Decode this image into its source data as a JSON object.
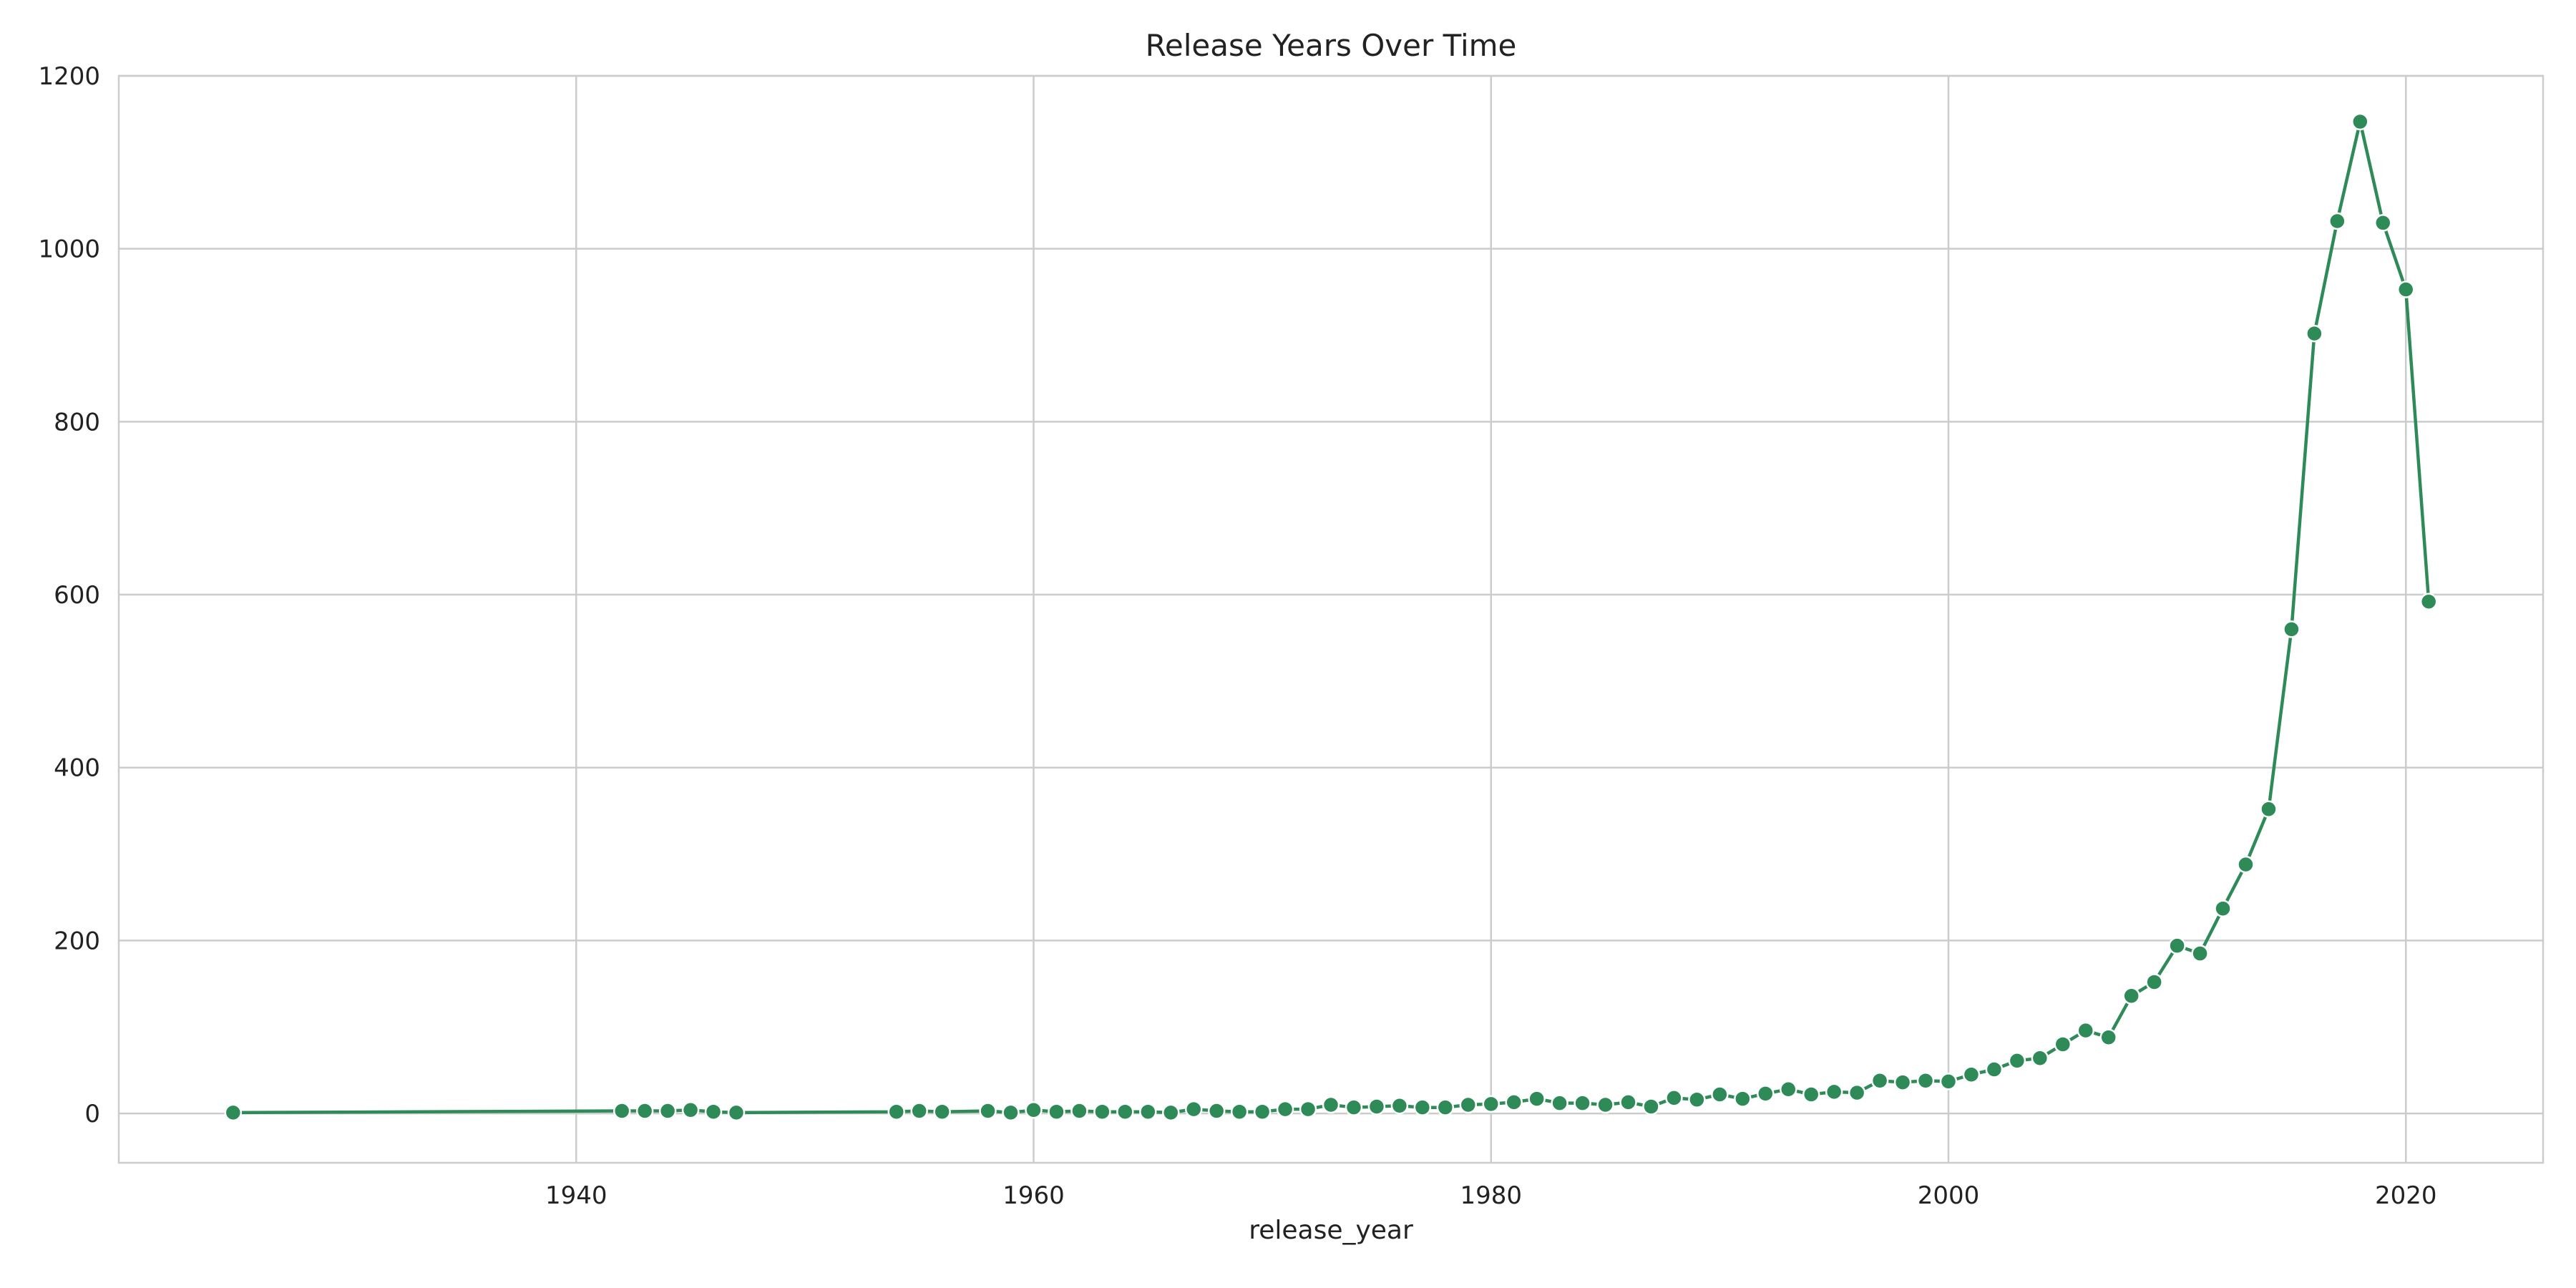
{
  "chart_data": {
    "type": "line",
    "title": "Release Years Over Time",
    "xlabel": "release_year",
    "ylabel": "",
    "xlim": [
      1920,
      2026
    ],
    "ylim": [
      -57,
      1200
    ],
    "xticks": [
      1940,
      1960,
      1980,
      2000,
      2020
    ],
    "yticks": [
      0,
      200,
      400,
      600,
      800,
      1000,
      1200
    ],
    "grid": true,
    "line_color": "#2e8b57",
    "series": [
      {
        "x": [
          1925,
          1942,
          1943,
          1944,
          1945,
          1946,
          1947,
          1954,
          1955,
          1956,
          1958,
          1959,
          1960,
          1961,
          1962,
          1963,
          1964,
          1965,
          1966,
          1967,
          1968,
          1969,
          1970,
          1971,
          1972,
          1973,
          1974,
          1975,
          1976,
          1977,
          1978,
          1979,
          1980,
          1981,
          1982,
          1983,
          1984,
          1985,
          1986,
          1987,
          1988,
          1989,
          1990,
          1991,
          1992,
          1993,
          1994,
          1995,
          1996,
          1997,
          1998,
          1999,
          2000,
          2001,
          2002,
          2003,
          2004,
          2005,
          2006,
          2007,
          2008,
          2009,
          2010,
          2011,
          2012,
          2013,
          2014,
          2015,
          2016,
          2017,
          2018,
          2019,
          2020,
          2021
        ],
        "y": [
          1,
          3,
          3,
          3,
          4,
          2,
          1,
          2,
          3,
          2,
          3,
          1,
          4,
          2,
          3,
          2,
          2,
          2,
          1,
          5,
          3,
          2,
          2,
          5,
          5,
          10,
          7,
          8,
          9,
          7,
          7,
          10,
          11,
          13,
          17,
          12,
          12,
          10,
          13,
          8,
          18,
          16,
          22,
          17,
          23,
          28,
          22,
          25,
          24,
          38,
          36,
          38,
          37,
          45,
          51,
          61,
          64,
          80,
          96,
          88,
          136,
          152,
          194,
          185,
          237,
          288,
          352,
          560,
          902,
          1032,
          1147,
          1030,
          953,
          592
        ]
      }
    ]
  }
}
